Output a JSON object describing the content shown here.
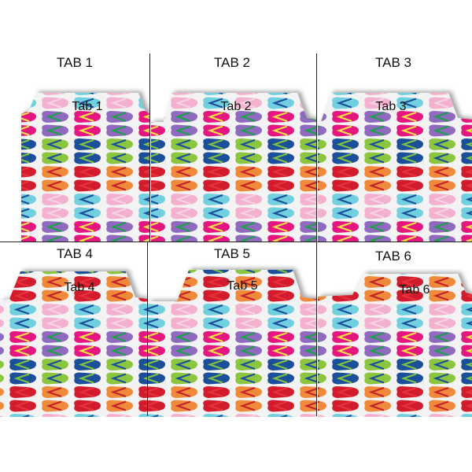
{
  "panels": [
    {
      "caption": "TAB 1",
      "tab_label": "Tab 1"
    },
    {
      "caption": "TAB 2",
      "tab_label": "Tab 2"
    },
    {
      "caption": "TAB 3",
      "tab_label": "Tab 3"
    },
    {
      "caption": "TAB 4",
      "tab_label": "Tab 4"
    },
    {
      "caption": "TAB 5",
      "tab_label": "Tab 5"
    },
    {
      "caption": "TAB 6",
      "tab_label": "Tab 6"
    }
  ],
  "pattern": {
    "name": "flip-flops",
    "column_a_colors": [
      "#e5197f",
      "#1f4f9a",
      "#d21f2d",
      "#6fd0df"
    ],
    "column_a_straps": [
      "#f2e04a",
      "#7cc242",
      "#e8303a",
      "#1f4f9a"
    ],
    "column_b_colors": [
      "#8f6bbf",
      "#8cc63f",
      "#f08a3a",
      "#f4b0cf"
    ],
    "column_b_straps": [
      "#1aa04a",
      "#1f4f9a",
      "#c4202a",
      "#f7d3e4"
    ],
    "background": "#f3f3f3"
  }
}
